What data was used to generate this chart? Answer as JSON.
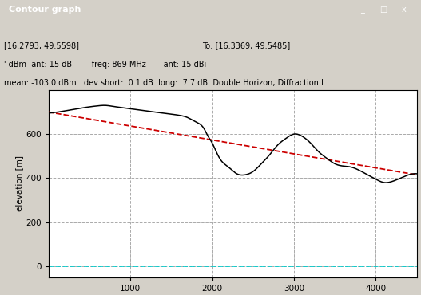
{
  "title": "Contour graph",
  "ylabel": "elevation [m]",
  "xlabel": "",
  "xlim": [
    0,
    4500
  ],
  "ylim": [
    -50,
    800
  ],
  "yticks": [
    0,
    200,
    400,
    600
  ],
  "xticks": [
    1000,
    2000,
    3000,
    4000
  ],
  "info_line1a": "[16.2793, 49.5598]",
  "info_line1b": "To: [16.3369, 49.5485]",
  "info_line2": "' dBm  ant: 15 dBi       freq: 869 MHz       ant: 15 dBi",
  "info_line3": "mean: -103.0 dBm   dev short:  0.1 dB  long:  7.7 dB  Double Horizon, Diffraction L",
  "terrain_color": "#000000",
  "line_of_sight_color": "#cc0000",
  "sea_level_color": "#00cccc",
  "bg_color": "#d4d0c8",
  "plot_bg_color": "#ffffff",
  "grid_color": "#aaaaaa",
  "titlebar_color1": "#000080",
  "titlebar_color2": "#1084d0",
  "red_line_x": [
    0,
    4500
  ],
  "red_line_y": [
    700,
    415
  ],
  "terrain_x": [
    0,
    200,
    400,
    600,
    700,
    800,
    900,
    1000,
    1200,
    1400,
    1600,
    1700,
    1800,
    1900,
    1950,
    2000,
    2050,
    2100,
    2200,
    2300,
    2400,
    2500,
    2600,
    2700,
    2800,
    2900,
    3000,
    3100,
    3200,
    3300,
    3400,
    3500,
    3600,
    3700,
    3800,
    3900,
    4000,
    4100,
    4200,
    4300,
    4400,
    4500
  ],
  "terrain_y": [
    695,
    705,
    718,
    728,
    730,
    725,
    720,
    715,
    705,
    695,
    685,
    675,
    655,
    625,
    590,
    560,
    520,
    485,
    450,
    420,
    415,
    430,
    465,
    505,
    550,
    580,
    600,
    590,
    560,
    520,
    490,
    465,
    455,
    450,
    435,
    415,
    395,
    380,
    385,
    400,
    415,
    420
  ]
}
